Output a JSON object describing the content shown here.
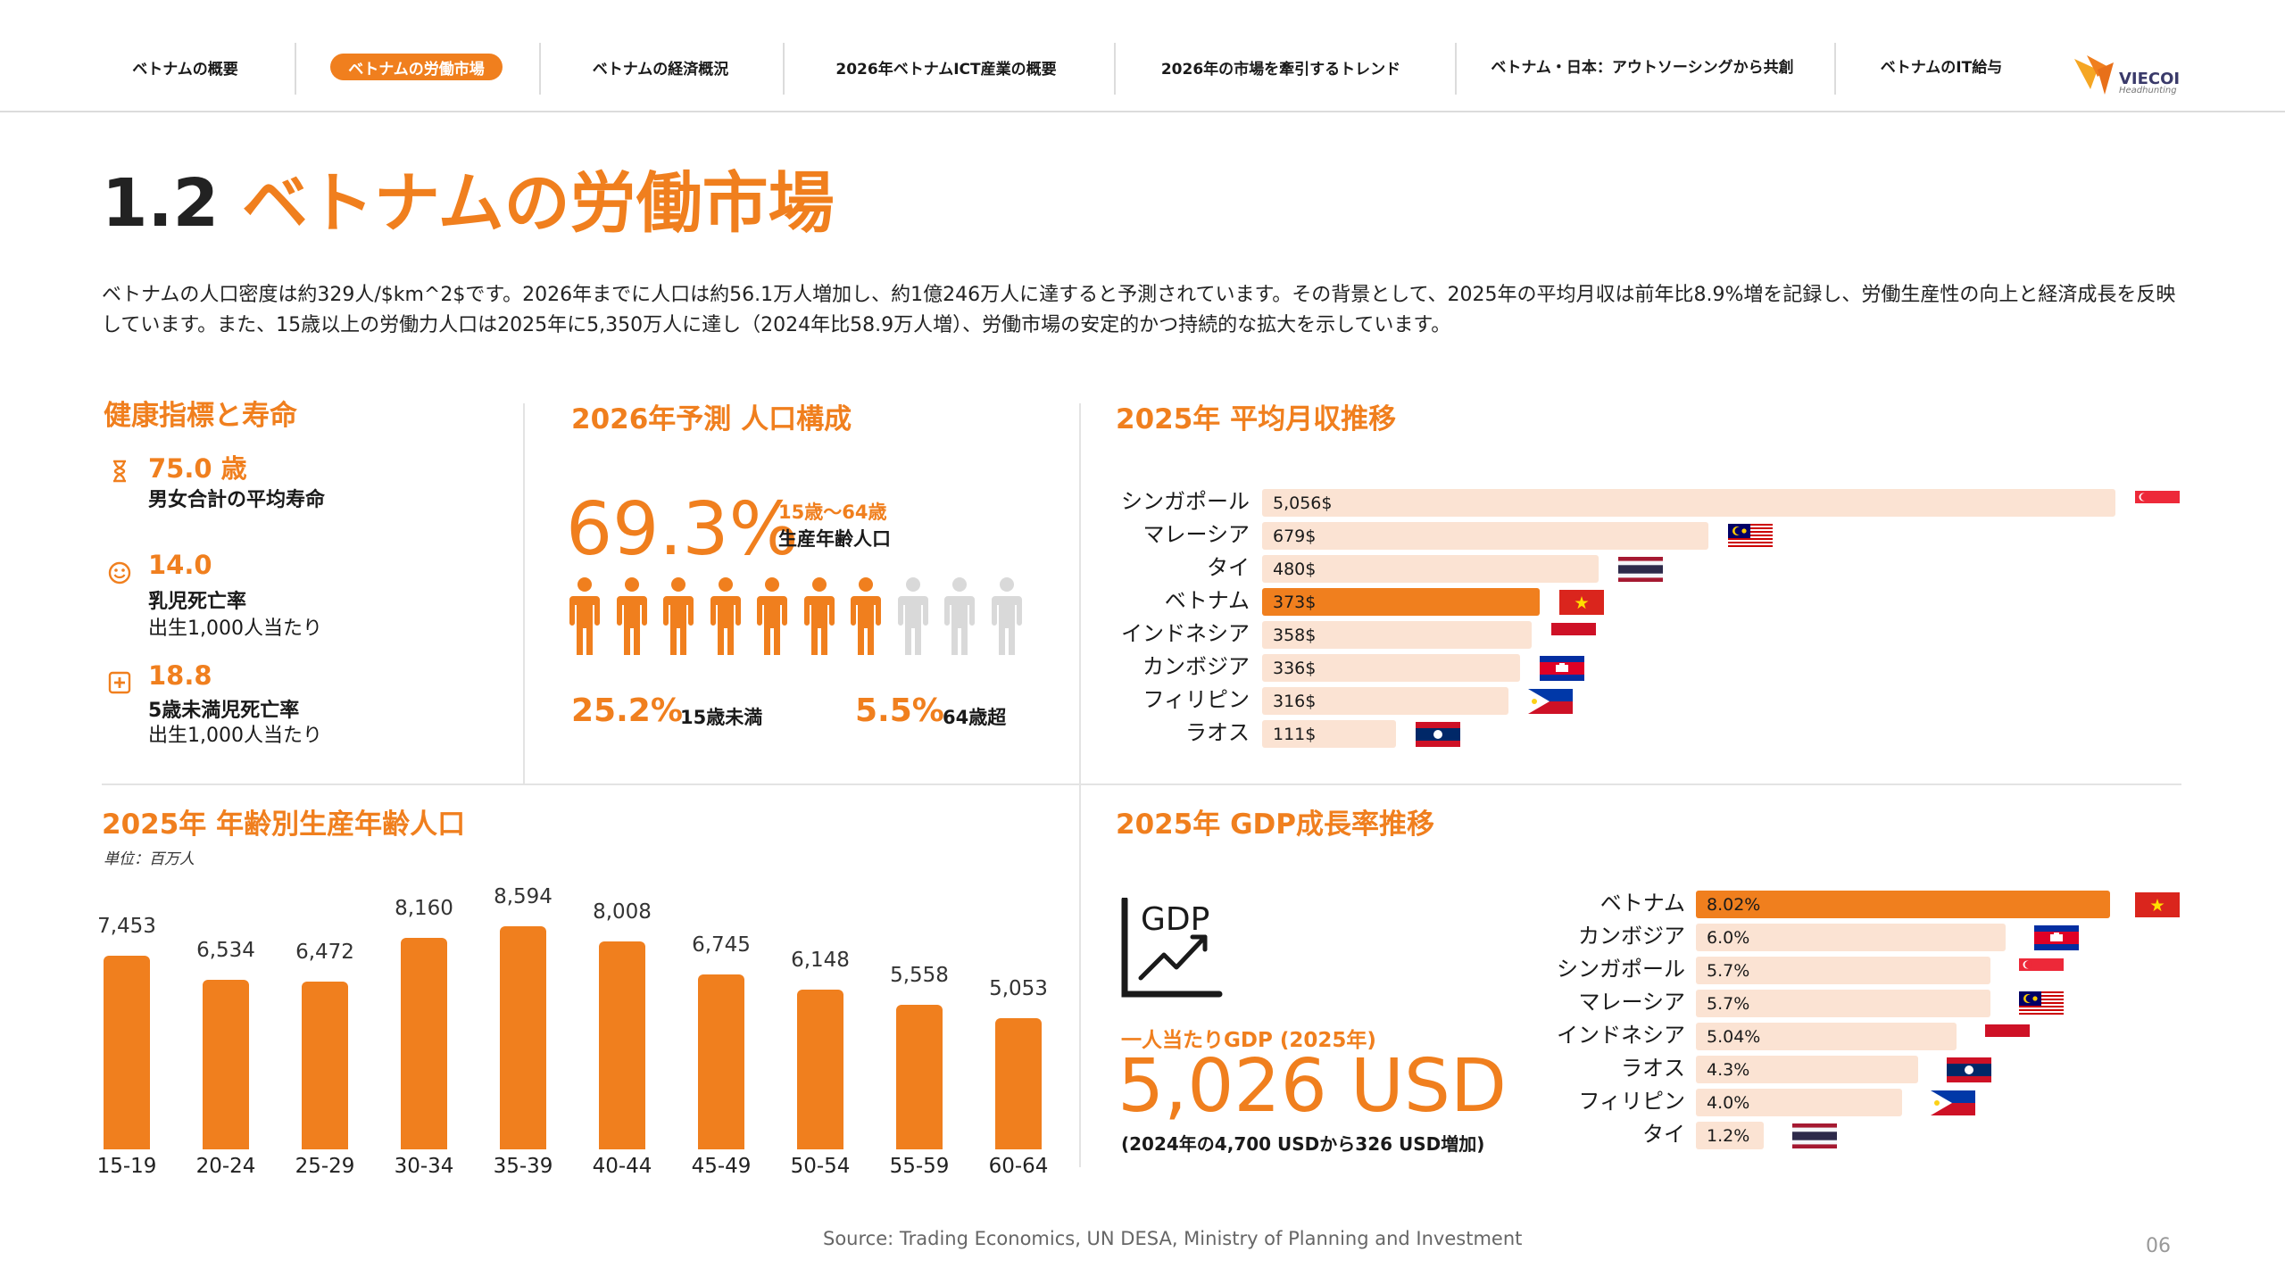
{
  "nav": {
    "items": [
      {
        "label": "ベトナムの概要"
      },
      {
        "label": "ベトナムの労働市場"
      },
      {
        "label": "ベトナムの経済概況"
      },
      {
        "label": "2026年ベトナムICT産業の概要"
      },
      {
        "label": "2026年の市場を牽引するトレンド"
      },
      {
        "label": "ベトナム・日本：アウトソーシングから共創"
      },
      {
        "label": "ベトナムのIT給与"
      }
    ],
    "active_index": 1,
    "logo_text": "VIECOI",
    "logo_sub": "Headhunting"
  },
  "title": {
    "number": "1.2",
    "text": "ベトナムの労働市場"
  },
  "intro": "ベトナムの人口密度は約329人/$km^2$です。2026年までに人口は約56.1万人増加し、約1億246万人に達すると予測されています。その背景として、2025年の平均月収は前年比8.9%増を記録し、労働生産性の向上と経済成長を反映しています。また、15歳以上の労働力人口は2025年に5,350万人に達し（2024年比58.9万人増）、労働市場の安定的かつ持続的な拡大を示しています。",
  "health": {
    "heading": "健康指標と寿命",
    "items": [
      {
        "icon": "hourglass-icon",
        "value": "75.0 歳",
        "label": "男女合計の平均寿命",
        "sub": ""
      },
      {
        "icon": "smiley-icon",
        "value": "14.0",
        "label": "乳児死亡率",
        "sub": "出生1,000人当たり"
      },
      {
        "icon": "medical-cross-icon",
        "value": "18.8",
        "label": "5歳未満児死亡率",
        "sub": "出生1,000人当たり"
      }
    ]
  },
  "population": {
    "heading": "2026年予測 人口構成",
    "main_pct": "69.3%",
    "main_range": "15歳～64歳",
    "main_label": "生産年齢人口",
    "people_total": 10,
    "people_highlighted": 7,
    "under15_pct": "25.2%",
    "under15_label": "15歳未満",
    "over64_pct": "5.5%",
    "over64_label": "64歳超",
    "accent": "#f07f1e",
    "muted": "#d9d9d9"
  },
  "salary": {
    "heading": "2025年 平均月収推移"
  },
  "age_pop": {
    "heading": "2025年 年齢別生産年齢人口",
    "unit": "単位：百万人"
  },
  "gdp": {
    "heading": "2025年 GDP成長率推移",
    "icon_text": "GDP",
    "per_capita_label": "一人当たりGDP (2025年)",
    "per_capita_value": "5,026 USD",
    "per_capita_note": "(2024年の4,700 USDから326 USD増加)"
  },
  "chart_data": [
    {
      "type": "bar",
      "orientation": "horizontal",
      "title": "2025年 平均月収推移",
      "categories": [
        "シンガポール",
        "マレーシア",
        "タイ",
        "ベトナム",
        "インドネシア",
        "カンボジア",
        "フィリピン",
        "ラオス"
      ],
      "values": [
        5056,
        679,
        480,
        373,
        358,
        336,
        316,
        111
      ],
      "value_labels": [
        "5,056$",
        "679$",
        "480$",
        "373$",
        "358$",
        "336$",
        "316$",
        "111$"
      ],
      "highlight": "ベトナム",
      "flags": [
        "sg",
        "my",
        "th",
        "vn",
        "id",
        "kh",
        "ph",
        "la"
      ]
    },
    {
      "type": "bar",
      "title": "2025年 年齢別生産年齢人口",
      "ylabel": "単位：百万人",
      "categories": [
        "15-19",
        "20-24",
        "25-29",
        "30-34",
        "35-39",
        "40-44",
        "45-49",
        "50-54",
        "55-59",
        "60-64"
      ],
      "values": [
        7.453,
        6.534,
        6.472,
        8.16,
        8.594,
        8.008,
        6.745,
        6.148,
        5.558,
        5.053
      ],
      "value_labels": [
        "7,453",
        "6,534",
        "6,472",
        "8,160",
        "8,594",
        "8,008",
        "6,745",
        "6,148",
        "5,558",
        "5,053"
      ]
    },
    {
      "type": "bar",
      "orientation": "horizontal",
      "title": "2025年 GDP成長率推移",
      "categories": [
        "ベトナム",
        "カンボジア",
        "シンガポール",
        "マレーシア",
        "インドネシア",
        "ラオス",
        "フィリピン",
        "タイ"
      ],
      "values": [
        8.02,
        6.0,
        5.7,
        5.7,
        5.04,
        4.3,
        4.0,
        1.2
      ],
      "value_labels": [
        "8.02%",
        "6.0%",
        "5.7%",
        "5.7%",
        "5.04%",
        "4.3%",
        "4.0%",
        "1.2%"
      ],
      "highlight": "ベトナム",
      "flags": [
        "vn",
        "kh",
        "sg",
        "my",
        "id",
        "la",
        "ph",
        "th"
      ]
    }
  ],
  "colors": {
    "accent": "#f07f1e",
    "bar_light": "#fbe3d3"
  },
  "source": "Source:   Trading Economics, UN DESA, Ministry of Planning and Investment",
  "page_number": "06"
}
